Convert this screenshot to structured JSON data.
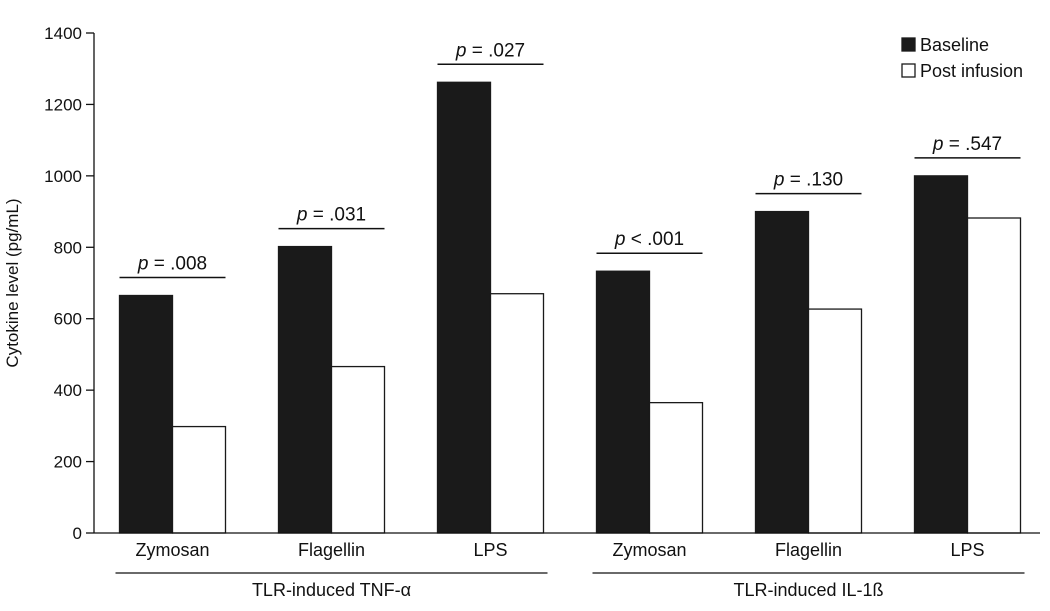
{
  "chart_data": {
    "type": "bar",
    "title": "",
    "ylabel": "Cytokine level (pg/mL)",
    "ylim": [
      0,
      1400
    ],
    "yticks": [
      0,
      200,
      400,
      600,
      800,
      1000,
      1200,
      1400
    ],
    "categories": [
      "Zymosan",
      "Flagellin",
      "LPS",
      "Zymosan",
      "Flagellin",
      "LPS"
    ],
    "groups": [
      {
        "label": "TLR-induced TNF-α",
        "categories": [
          0,
          1,
          2
        ]
      },
      {
        "label": "TLR-induced IL-1ß",
        "categories": [
          3,
          4,
          5
        ]
      }
    ],
    "series": [
      {
        "name": "Baseline",
        "color": "#1a1a1a",
        "values": [
          665,
          802,
          1262,
          733,
          900,
          1000
        ]
      },
      {
        "name": "Post infusion",
        "color": "#ffffff",
        "values": [
          298,
          466,
          670,
          365,
          627,
          882
        ]
      }
    ],
    "annotations": [
      {
        "category": 0,
        "p_symbol": "p",
        "p_value": " = .008"
      },
      {
        "category": 1,
        "p_symbol": "p",
        "p_value": " = .031"
      },
      {
        "category": 2,
        "p_symbol": "p",
        "p_value": " = .027"
      },
      {
        "category": 3,
        "p_symbol": "p",
        "p_value": " < .001"
      },
      {
        "category": 4,
        "p_symbol": "p",
        "p_value": " = .130"
      },
      {
        "category": 5,
        "p_symbol": "p",
        "p_value": " = .547"
      }
    ],
    "legend": {
      "position": "top-right"
    },
    "grid": false
  }
}
